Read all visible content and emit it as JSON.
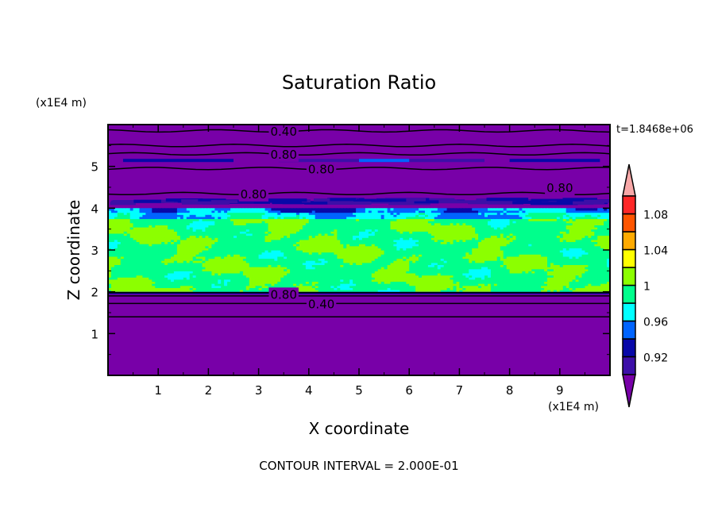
{
  "chart_data": {
    "type": "heatmap",
    "title": "Saturation Ratio",
    "xlabel": "X coordinate",
    "ylabel": "Z coordinate",
    "x_unit": "(x1E4 m)",
    "y_unit": "(x1E4 m)",
    "xlim": [
      0,
      10
    ],
    "ylim": [
      0,
      6
    ],
    "x_ticks": [
      "1",
      "2",
      "3",
      "4",
      "5",
      "6",
      "7",
      "8",
      "9"
    ],
    "y_ticks": [
      "1",
      "2",
      "3",
      "4",
      "5"
    ],
    "time_label": "t=1.8468e+06",
    "footer": "CONTOUR INTERVAL = 2.000E-01",
    "contour_labels": [
      {
        "text": "0.40",
        "x": 3.5,
        "z": 5.85
      },
      {
        "text": "0.80",
        "x": 3.5,
        "z": 5.3
      },
      {
        "text": "0.80",
        "x": 3.5,
        "z": 4.95
      },
      {
        "text": "0.80",
        "x": 2.9,
        "z": 4.35
      },
      {
        "text": "0.80",
        "x": 9.0,
        "z": 4.5
      },
      {
        "text": "0.80",
        "x": 3.5,
        "z": 1.95
      },
      {
        "text": "0.40",
        "x": 3.5,
        "z": 1.72
      }
    ],
    "cloud_layer_z": [
      2.0,
      4.0
    ],
    "colorbar": {
      "levels": [
        0.9,
        0.92,
        0.94,
        0.96,
        0.98,
        1.0,
        1.02,
        1.04,
        1.06,
        1.08,
        1.1
      ],
      "colors": [
        "#3c0fa8",
        "#0808a8",
        "#0064ff",
        "#00ffff",
        "#00ff8c",
        "#8cff00",
        "#ffff00",
        "#ffaa00",
        "#ff5500",
        "#ff2828"
      ],
      "under_color": "#7800a8",
      "over_color": "#f8a8a8",
      "tick_labels": [
        {
          "value": 0.92,
          "text": "0.92"
        },
        {
          "value": 0.96,
          "text": "0.96"
        },
        {
          "value": 1.0,
          "text": "1"
        },
        {
          "value": 1.04,
          "text": "1.04"
        },
        {
          "value": 1.08,
          "text": "1.08"
        }
      ]
    }
  }
}
